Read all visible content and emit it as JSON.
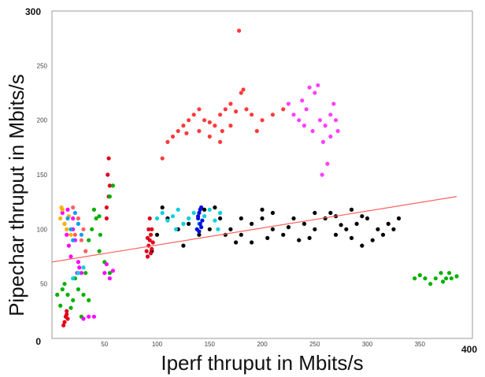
{
  "chart_data": {
    "type": "scatter",
    "title": "",
    "xlabel": "Iperf thruput in Mbits/s",
    "ylabel": "Pipechar thruput in Mbits/s",
    "xlim": [
      0,
      400
    ],
    "ylim": [
      0,
      300
    ],
    "x_ticks": [
      "0",
      "50",
      "100",
      "150",
      "200",
      "250",
      "300",
      "350",
      "400"
    ],
    "y_ticks": [
      "0",
      "50",
      "100",
      "150",
      "200",
      "250",
      "300"
    ],
    "grid": false,
    "legend": "none",
    "series": [
      {
        "color": "#ff3b3b",
        "points": [
          [
            105,
            165
          ],
          [
            110,
            180
          ],
          [
            115,
            185
          ],
          [
            120,
            190
          ],
          [
            125,
            195
          ],
          [
            130,
            200
          ],
          [
            135,
            205
          ],
          [
            140,
            210
          ],
          [
            145,
            200
          ],
          [
            150,
            198
          ],
          [
            155,
            195
          ],
          [
            160,
            205
          ],
          [
            165,
            210
          ],
          [
            170,
            215
          ],
          [
            175,
            208
          ],
          [
            180,
            225
          ],
          [
            185,
            210
          ],
          [
            190,
            205
          ],
          [
            195,
            190
          ],
          [
            200,
            200
          ],
          [
            210,
            205
          ],
          [
            220,
            210
          ],
          [
            160,
            180
          ],
          [
            150,
            185
          ],
          [
            170,
            195
          ],
          [
            178,
            282
          ],
          [
            182,
            228
          ],
          [
            140,
            190
          ],
          [
            128,
            188
          ],
          [
            162,
            190
          ]
        ]
      },
      {
        "color": "#ff40ff",
        "points": [
          [
            225,
            215
          ],
          [
            230,
            205
          ],
          [
            235,
            200
          ],
          [
            240,
            195
          ],
          [
            245,
            230
          ],
          [
            250,
            225
          ],
          [
            255,
            200
          ],
          [
            260,
            195
          ],
          [
            262,
            160
          ],
          [
            265,
            205
          ],
          [
            270,
            200
          ],
          [
            258,
            180
          ],
          [
            248,
            190
          ],
          [
            242,
            210
          ],
          [
            238,
            218
          ],
          [
            253,
            232
          ],
          [
            265,
            185
          ],
          [
            268,
            215
          ],
          [
            272,
            190
          ],
          [
            257,
            150
          ]
        ]
      },
      {
        "color": "#000000",
        "points": [
          [
            100,
            95
          ],
          [
            110,
            110
          ],
          [
            120,
            100
          ],
          [
            130,
            105
          ],
          [
            140,
            95
          ],
          [
            150,
            100
          ],
          [
            160,
            110
          ],
          [
            170,
            100
          ],
          [
            180,
            95
          ],
          [
            190,
            105
          ],
          [
            200,
            110
          ],
          [
            210,
            100
          ],
          [
            220,
            95
          ],
          [
            230,
            110
          ],
          [
            240,
            105
          ],
          [
            250,
            100
          ],
          [
            260,
            110
          ],
          [
            270,
            95
          ],
          [
            280,
            100
          ],
          [
            290,
            105
          ],
          [
            300,
            110
          ],
          [
            310,
            100
          ],
          [
            320,
            105
          ],
          [
            330,
            110
          ],
          [
            95,
            80
          ],
          [
            105,
            120
          ],
          [
            125,
            85
          ],
          [
            145,
            118
          ],
          [
            175,
            88
          ],
          [
            205,
            92
          ],
          [
            235,
            90
          ],
          [
            265,
            115
          ],
          [
            285,
            92
          ],
          [
            295,
            85
          ],
          [
            295,
            112
          ],
          [
            305,
            90
          ],
          [
            315,
            95
          ],
          [
            325,
            100
          ],
          [
            250,
            115
          ],
          [
            270,
            112
          ],
          [
            200,
            118
          ],
          [
            225,
            102
          ],
          [
            285,
            118
          ],
          [
            190,
            88
          ],
          [
            210,
            115
          ],
          [
            180,
            110
          ],
          [
            165,
            95
          ],
          [
            155,
            120
          ],
          [
            245,
            92
          ],
          [
            275,
            104
          ]
        ]
      },
      {
        "color": "#e0001a",
        "points": [
          [
            90,
            80
          ],
          [
            92,
            85
          ],
          [
            93,
            90
          ],
          [
            94,
            95
          ],
          [
            95,
            100
          ],
          [
            91,
            75
          ],
          [
            96,
            88
          ],
          [
            92,
            100
          ],
          [
            94,
            78
          ],
          [
            93,
            110
          ],
          [
            95,
            82
          ],
          [
            91,
            92
          ],
          [
            12,
            15
          ],
          [
            13,
            20
          ],
          [
            14,
            25
          ],
          [
            15,
            18
          ],
          [
            11,
            12
          ],
          [
            14,
            22
          ],
          [
            52,
            120
          ],
          [
            54,
            130
          ],
          [
            55,
            140
          ],
          [
            53,
            150
          ],
          [
            54,
            165
          ],
          [
            52,
            110
          ]
        ]
      },
      {
        "color": "#00b000",
        "points": [
          [
            5,
            40
          ],
          [
            10,
            45
          ],
          [
            15,
            40
          ],
          [
            20,
            35
          ],
          [
            25,
            45
          ],
          [
            30,
            40
          ],
          [
            35,
            35
          ],
          [
            8,
            30
          ],
          [
            18,
            28
          ],
          [
            28,
            20
          ],
          [
            12,
            50
          ],
          [
            22,
            55
          ],
          [
            32,
            60
          ],
          [
            38,
            100
          ],
          [
            42,
            110
          ],
          [
            46,
            95
          ],
          [
            40,
            118
          ],
          [
            35,
            90
          ],
          [
            45,
            80
          ],
          [
            50,
            70
          ],
          [
            55,
            60
          ],
          [
            345,
            55
          ],
          [
            350,
            58
          ],
          [
            355,
            55
          ],
          [
            360,
            50
          ],
          [
            365,
            55
          ],
          [
            370,
            60
          ],
          [
            375,
            55
          ],
          [
            380,
            55
          ],
          [
            385,
            57
          ],
          [
            372,
            52
          ],
          [
            378,
            60
          ],
          [
            55,
            130
          ],
          [
            58,
            140
          ],
          [
            45,
            112
          ]
        ]
      },
      {
        "color": "#ff00ff",
        "points": [
          [
            10,
            115
          ],
          [
            12,
            105
          ],
          [
            14,
            95
          ],
          [
            16,
            85
          ],
          [
            18,
            75
          ],
          [
            20,
            100
          ],
          [
            22,
            90
          ],
          [
            24,
            60
          ],
          [
            26,
            65
          ],
          [
            28,
            60
          ],
          [
            30,
            18
          ],
          [
            35,
            20
          ],
          [
            40,
            20
          ],
          [
            50,
            60
          ],
          [
            52,
            68
          ],
          [
            55,
            55
          ],
          [
            58,
            62
          ],
          [
            20,
            110
          ],
          [
            15,
            118
          ],
          [
            25,
            70
          ]
        ]
      },
      {
        "color": "#00d0e0",
        "points": [
          [
            100,
            110
          ],
          [
            105,
            115
          ],
          [
            110,
            108
          ],
          [
            115,
            112
          ],
          [
            120,
            118
          ],
          [
            125,
            105
          ],
          [
            130,
            110
          ],
          [
            135,
            115
          ],
          [
            145,
            112
          ],
          [
            150,
            118
          ],
          [
            155,
            108
          ],
          [
            160,
            115
          ],
          [
            20,
            55
          ],
          [
            25,
            60
          ],
          [
            30,
            65
          ],
          [
            140,
            105
          ],
          [
            118,
            100
          ],
          [
            158,
            100
          ]
        ]
      },
      {
        "color": "#0010e0",
        "points": [
          [
            138,
            100
          ],
          [
            139,
            110
          ],
          [
            140,
            115
          ],
          [
            141,
            105
          ],
          [
            142,
            120
          ],
          [
            143,
            108
          ],
          [
            140,
            98
          ],
          [
            141,
            118
          ],
          [
            139,
            112
          ],
          [
            142,
            102
          ]
        ]
      },
      {
        "color": "#ffb000",
        "points": [
          [
            8,
            110
          ],
          [
            10,
            118
          ],
          [
            12,
            105
          ],
          [
            14,
            100
          ],
          [
            16,
            112
          ],
          [
            18,
            95
          ],
          [
            9,
            120
          ]
        ]
      },
      {
        "color": "#00a0ff",
        "points": [
          [
            15,
            110
          ],
          [
            18,
            100
          ],
          [
            20,
            90
          ],
          [
            22,
            115
          ],
          [
            25,
            105
          ],
          [
            28,
            95
          ]
        ]
      },
      {
        "color": "#ff6060",
        "points": [
          [
            20,
            120
          ],
          [
            25,
            110
          ],
          [
            28,
            90
          ],
          [
            32,
            80
          ],
          [
            30,
            100
          ],
          [
            22,
            95
          ]
        ]
      }
    ],
    "trendline": {
      "color": "#ff6060",
      "from": [
        0,
        70
      ],
      "to": [
        385,
        130
      ]
    }
  }
}
